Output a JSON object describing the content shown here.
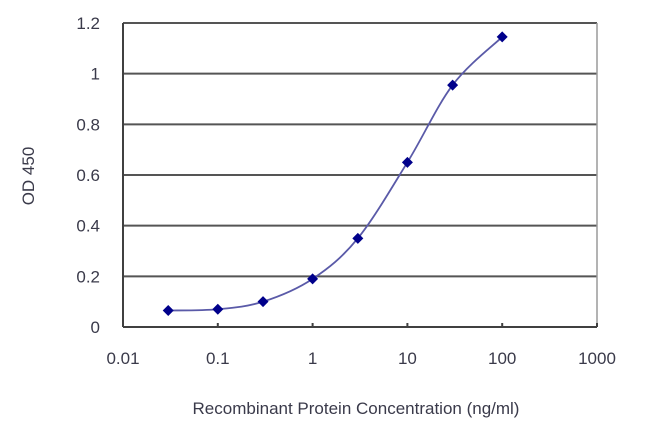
{
  "chart_data": {
    "type": "line",
    "title": "",
    "xlabel": "Recombinant Protein Concentration (ng/ml)",
    "ylabel": "OD 450",
    "x_scale": "log",
    "xlim": [
      0.01,
      1000
    ],
    "ylim": [
      0,
      1.2
    ],
    "x_ticks": [
      "0.01",
      "0.1",
      "1",
      "10",
      "100",
      "1000"
    ],
    "y_ticks": [
      "0",
      "0.2",
      "0.4",
      "0.6",
      "0.8",
      "1",
      "1.2"
    ],
    "grid": {
      "horizontal": true,
      "vertical": false
    },
    "legend": null,
    "series": [
      {
        "name": "OD 450",
        "marker": "diamond",
        "line": "smooth",
        "color": "#00008b",
        "line_color": "#5a5aa8",
        "x": [
          0.03,
          0.1,
          0.3,
          1,
          3,
          10,
          30,
          100
        ],
        "values": [
          0.065,
          0.07,
          0.1,
          0.19,
          0.35,
          0.65,
          0.955,
          1.145
        ]
      }
    ]
  },
  "labels": {
    "xlabel": "Recombinant Protein Concentration (ng/ml)",
    "ylabel": "OD 450",
    "x_ticks": [
      "0.01",
      "0.1",
      "1",
      "10",
      "100",
      "1000"
    ],
    "y_ticks": [
      "0",
      "0.2",
      "0.4",
      "0.6",
      "0.8",
      "1",
      "1.2"
    ]
  },
  "colors": {
    "marker": "#00008b",
    "line": "#5a5aa8",
    "axis": "#404040",
    "grid": "#555555",
    "text": "#3a3a4a"
  }
}
